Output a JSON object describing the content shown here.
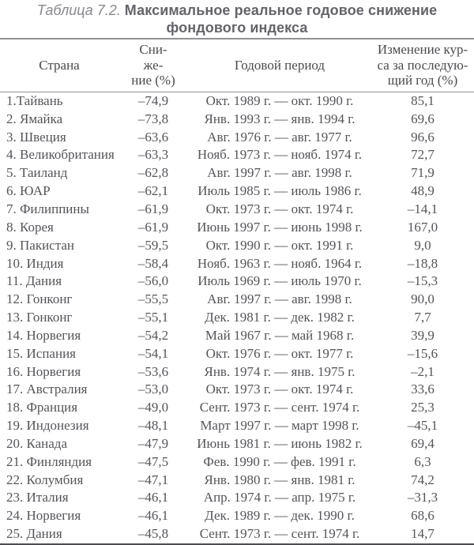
{
  "title": {
    "label": "Таблица 7.2.",
    "text": "Максимальное реальное годовое снижение фондового индекса"
  },
  "table": {
    "headers": {
      "country": "Страна",
      "decline": "Сни-\nже-\nние (%)",
      "period": "Годовой период",
      "change": "Изменение кур-\nса за последую-\nщий год (%)"
    },
    "rows": [
      {
        "country": "1.Тайвань",
        "decline": "–74,9",
        "period": "Окт. 1989 г. — окт. 1990 г.",
        "change": "85,1"
      },
      {
        "country": "2. Ямайка",
        "decline": "–73,8",
        "period": "Янв. 1993 г. — янв. 1994 г.",
        "change": "69,6"
      },
      {
        "country": "3. Швеция",
        "decline": "–63,6",
        "period": "Авг. 1976 г. — авг. 1977 г.",
        "change": "96,6"
      },
      {
        "country": "4. Великобритания",
        "decline": "–63,3",
        "period": "Нояб. 1973 г. — нояб. 1974 г.",
        "change": "72,7"
      },
      {
        "country": "5. Таиланд",
        "decline": "–62,8",
        "period": "Авг. 1997 г. — авг. 1998 г.",
        "change": "71,9"
      },
      {
        "country": "6. ЮАР",
        "decline": "–62,1",
        "period": "Июль 1985 г. — июль 1986 г.",
        "change": "48,9"
      },
      {
        "country": "7. Филиппины",
        "decline": "–61,9",
        "period": "Окт. 1973 г. — окт. 1974 г.",
        "change": "–14,1"
      },
      {
        "country": "8. Корея",
        "decline": "–61,9",
        "period": "Июнь 1997 г. — июнь 1998 г.",
        "change": "167,0"
      },
      {
        "country": "9. Пакистан",
        "decline": "–59,5",
        "period": "Окт. 1990 г. — окт. 1991 г.",
        "change": "9,0"
      },
      {
        "country": "10. Индия",
        "decline": "–58,4",
        "period": "Нояб. 1963 г. — нояб. 1964 г.",
        "change": "–18,8"
      },
      {
        "country": "11. Дания",
        "decline": "–56,0",
        "period": "Июль 1969 г. — июль 1970 г.",
        "change": "–15,3"
      },
      {
        "country": "12. Гонконг",
        "decline": "–55,5",
        "period": "Авг. 1997 г. — авг. 1998 г.",
        "change": "90,0"
      },
      {
        "country": "13. Гонконг",
        "decline": "–55,1",
        "period": "Дек. 1981 г. — дек. 1982 г.",
        "change": "7,7"
      },
      {
        "country": "14. Норвегия",
        "decline": "–54,2",
        "period": "Май 1967 г. — май 1968 г.",
        "change": "39,9"
      },
      {
        "country": "15. Испания",
        "decline": "–54,1",
        "period": "Окт. 1976 г. — окт. 1977 г.",
        "change": "–15,6"
      },
      {
        "country": "16. Норвегия",
        "decline": "–53,6",
        "period": "Янв. 1974 г. — янв. 1975 г.",
        "change": "–2,1"
      },
      {
        "country": "17. Австралия",
        "decline": "–53,0",
        "period": "Окт. 1973 г. — окт. 1974 г.",
        "change": "33,6"
      },
      {
        "country": "18. Франция",
        "decline": "–49,0",
        "period": "Сент. 1973 г. — сент. 1974 г.",
        "change": "25,3"
      },
      {
        "country": "19. Индонезия",
        "decline": "–48,1",
        "period": "Март 1997 г. — март 1998 г.",
        "change": "–45,1"
      },
      {
        "country": "20. Канада",
        "decline": "–47,9",
        "period": "Июнь 1981 г. — июнь 1982 г.",
        "change": "69,4"
      },
      {
        "country": "21. Финляндия",
        "decline": "–47,5",
        "period": "Фев. 1990 г. — фев. 1991 г.",
        "change": "6,3"
      },
      {
        "country": "22. Колумбия",
        "decline": "–47,1",
        "period": "Янв. 1980 г. — янв. 1981 г.",
        "change": "74,2"
      },
      {
        "country": "23. Италия",
        "decline": "–46,1",
        "period": "Апр. 1974 г. — апр. 1975 г.",
        "change": "–31,3"
      },
      {
        "country": "24. Норвегия",
        "decline": "–46,1",
        "period": "Дек. 1989 г. — дек. 1990 г.",
        "change": "68,6"
      },
      {
        "country": "25. Дания",
        "decline": "–45,8",
        "period": "Сент. 1973 г. — сент. 1974 г.",
        "change": "14,7"
      }
    ]
  }
}
